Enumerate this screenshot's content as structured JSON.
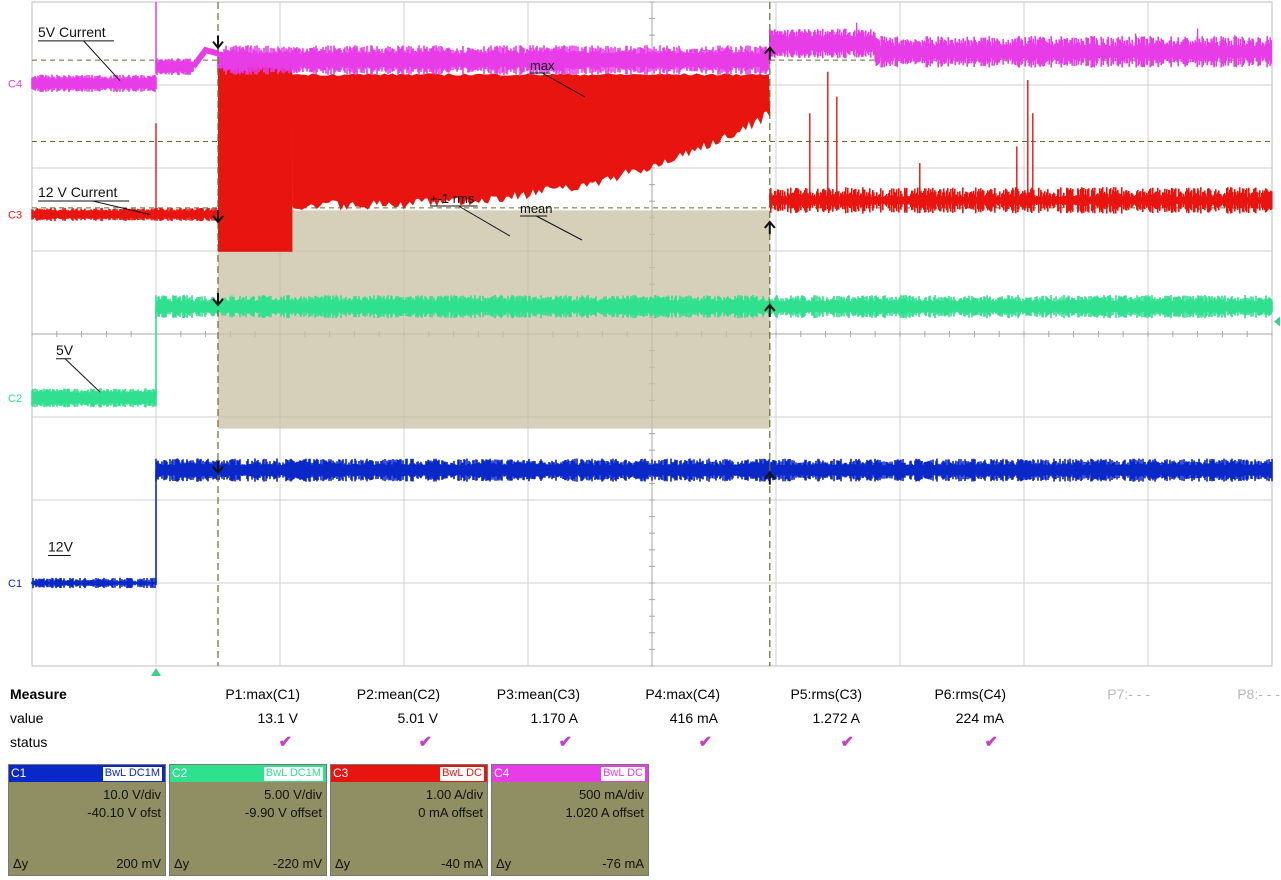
{
  "chart_data": {
    "type": "line",
    "grid": true,
    "grid_divisions": {
      "x": 10,
      "y": 8
    },
    "colors": {
      "C1": "#0a28c8",
      "C2": "#2fe08e",
      "C3": "#e8140f",
      "C4": "#e83ce8",
      "grid": "#cfcfcf",
      "cursor": "#6b6b2a",
      "zone": "#c8c0a4"
    },
    "channels": [
      {
        "id": "C1",
        "trace_label": "12V",
        "low": 1.0,
        "high": 2.36
      },
      {
        "id": "C2",
        "trace_label": "5V",
        "low": 3.23,
        "high": 4.33
      },
      {
        "id": "C3",
        "trace_label": "12 V Current",
        "baseline": 5.44,
        "after": 5.56
      },
      {
        "id": "C4",
        "trace_label": "5V Current",
        "baseline": 7.02,
        "mid": 7.3,
        "after": 7.5
      }
    ],
    "annotations": {
      "max": "max",
      "rms": "+-1 rms",
      "mean": "mean"
    },
    "timeline_div": {
      "step_edge": 1.0,
      "cursor_1": 1.5,
      "cursor_2": 5.95,
      "burst_end": 2.1
    }
  },
  "measure": {
    "title": "Measure",
    "row_labels": {
      "value": "value",
      "status": "status"
    },
    "params": [
      {
        "name": "P1:max(C1)",
        "value": "13.1 V",
        "status": "✔"
      },
      {
        "name": "P2:mean(C2)",
        "value": "5.01 V",
        "status": "✔"
      },
      {
        "name": "P3:mean(C3)",
        "value": "1.170 A",
        "status": "✔"
      },
      {
        "name": "P4:max(C4)",
        "value": "416 mA",
        "status": "✔"
      },
      {
        "name": "P5:rms(C3)",
        "value": "1.272 A",
        "status": "✔"
      },
      {
        "name": "P6:rms(C4)",
        "value": "224 mA",
        "status": "✔"
      },
      {
        "name": "P7:- - -",
        "value": "",
        "status": ""
      },
      {
        "name": "P8:- - -",
        "value": "",
        "status": ""
      }
    ]
  },
  "channel_boxes": [
    {
      "name": "C1",
      "tag": "BwL DC1M",
      "color": "#0a28c8",
      "div": "10.0 V/div",
      "offset": "-40.10 V ofst",
      "dy_label": "Δy",
      "dy": "200 mV"
    },
    {
      "name": "C2",
      "tag": "BwL DC1M",
      "color": "#2fe08e",
      "div": "5.00 V/div",
      "offset": "-9.90 V offset",
      "dy_label": "Δy",
      "dy": "-220 mV"
    },
    {
      "name": "C3",
      "tag": "BwL DC",
      "color": "#e8140f",
      "div": "1.00 A/div",
      "offset": "0 mA offset",
      "dy_label": "Δy",
      "dy": "-40 mA"
    },
    {
      "name": "C4",
      "tag": "BwL DC",
      "color": "#e83ce8",
      "div": "500 mA/div",
      "offset": "1.020 A offset",
      "dy_label": "Δy",
      "dy": "-76 mA"
    }
  ]
}
